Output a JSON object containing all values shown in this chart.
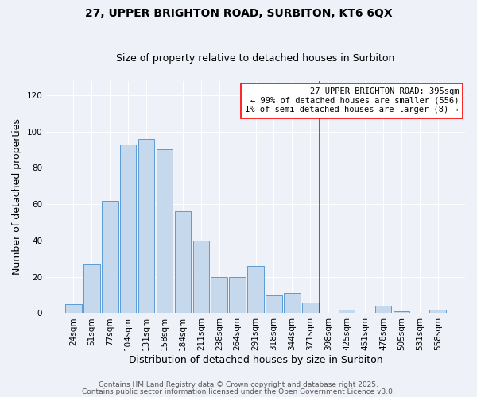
{
  "title": "27, UPPER BRIGHTON ROAD, SURBITON, KT6 6QX",
  "subtitle": "Size of property relative to detached houses in Surbiton",
  "xlabel": "Distribution of detached houses by size in Surbiton",
  "ylabel": "Number of detached properties",
  "bar_labels": [
    "24sqm",
    "51sqm",
    "77sqm",
    "104sqm",
    "131sqm",
    "158sqm",
    "184sqm",
    "211sqm",
    "238sqm",
    "264sqm",
    "291sqm",
    "318sqm",
    "344sqm",
    "371sqm",
    "398sqm",
    "425sqm",
    "451sqm",
    "478sqm",
    "505sqm",
    "531sqm",
    "558sqm"
  ],
  "bar_heights": [
    5,
    27,
    62,
    93,
    96,
    90,
    56,
    40,
    20,
    20,
    26,
    10,
    11,
    6,
    0,
    2,
    0,
    4,
    1,
    0,
    2
  ],
  "bar_color": "#c5d8ec",
  "bar_edge_color": "#5b9bd5",
  "ylim": [
    0,
    128
  ],
  "yticks": [
    0,
    20,
    40,
    60,
    80,
    100,
    120
  ],
  "vline_pos": 13.5,
  "vline_color": "red",
  "annotation_title": "27 UPPER BRIGHTON ROAD: 395sqm",
  "annotation_line1": "← 99% of detached houses are smaller (556)",
  "annotation_line2": "1% of semi-detached houses are larger (8) →",
  "annotation_box_facecolor": "#ffffff",
  "annotation_box_edgecolor": "red",
  "footer1": "Contains HM Land Registry data © Crown copyright and database right 2025.",
  "footer2": "Contains public sector information licensed under the Open Government Licence v3.0.",
  "background_color": "#eef2f8",
  "grid_color": "#ffffff",
  "title_fontsize": 10,
  "subtitle_fontsize": 9,
  "axis_label_fontsize": 9,
  "tick_fontsize": 7.5,
  "annotation_fontsize": 7.5,
  "footer_fontsize": 6.5
}
